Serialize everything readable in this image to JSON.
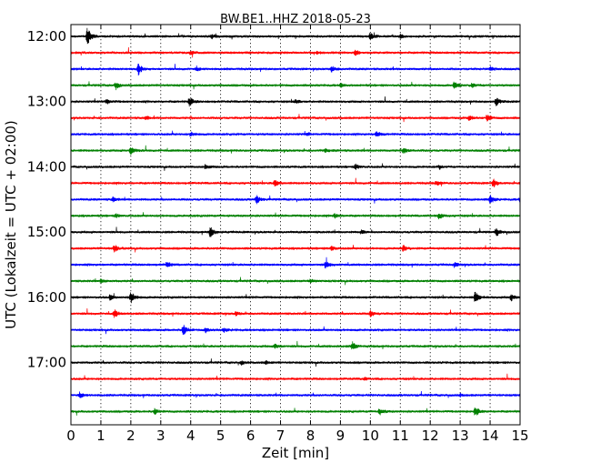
{
  "chart_data": {
    "type": "line",
    "title": "BW.BE1..HHZ 2018-05-23",
    "xlabel": "Zeit  [min]",
    "ylabel": "UTC (Lokalzeit = UTC + 02:00)",
    "xlim": [
      0,
      15
    ],
    "x_ticks": [
      "0",
      "1",
      "2",
      "3",
      "4",
      "5",
      "6",
      "7",
      "8",
      "9",
      "10",
      "11",
      "12",
      "13",
      "14",
      "15"
    ],
    "y_ticks": [
      {
        "label": "12:00",
        "row": 0
      },
      {
        "label": "13:00",
        "row": 4
      },
      {
        "label": "14:00",
        "row": 8
      },
      {
        "label": "15:00",
        "row": 12
      },
      {
        "label": "16:00",
        "row": 16
      },
      {
        "label": "17:00",
        "row": 20
      }
    ],
    "grid": "vertical dotted",
    "trace_colors": [
      "#000000",
      "#ff0000",
      "#0000ff",
      "#008000"
    ],
    "traces": [
      {
        "start": "12:00",
        "color": "#000000",
        "events": [
          [
            0.55,
            1.0
          ],
          [
            10.0,
            0.45
          ],
          [
            4.7,
            0.25
          ],
          [
            11.0,
            0.2
          ]
        ]
      },
      {
        "start": "12:15",
        "color": "#ff0000",
        "events": [
          [
            9.5,
            0.3
          ],
          [
            4.0,
            0.2
          ],
          [
            8.2,
            0.2
          ]
        ]
      },
      {
        "start": "12:30",
        "color": "#0000ff",
        "events": [
          [
            2.25,
            0.7
          ],
          [
            8.7,
            0.3
          ],
          [
            14.0,
            0.25
          ],
          [
            4.2,
            0.2
          ]
        ]
      },
      {
        "start": "12:45",
        "color": "#008000",
        "events": [
          [
            1.5,
            0.35
          ],
          [
            12.8,
            0.4
          ],
          [
            13.4,
            0.3
          ],
          [
            9.0,
            0.2
          ]
        ]
      },
      {
        "start": "13:00",
        "color": "#000000",
        "events": [
          [
            3.95,
            0.5
          ],
          [
            14.2,
            0.45
          ],
          [
            1.2,
            0.25
          ],
          [
            7.5,
            0.2
          ]
        ]
      },
      {
        "start": "13:15",
        "color": "#ff0000",
        "events": [
          [
            13.9,
            0.4
          ],
          [
            13.3,
            0.3
          ],
          [
            2.5,
            0.2
          ]
        ]
      },
      {
        "start": "13:30",
        "color": "#0000ff",
        "events": [
          [
            10.2,
            0.3
          ],
          [
            4.0,
            0.2
          ],
          [
            7.9,
            0.2
          ]
        ]
      },
      {
        "start": "13:45",
        "color": "#008000",
        "events": [
          [
            2.0,
            0.45
          ],
          [
            11.1,
            0.35
          ],
          [
            8.5,
            0.2
          ]
        ]
      },
      {
        "start": "14:00",
        "color": "#000000",
        "events": [
          [
            4.5,
            0.3
          ],
          [
            9.5,
            0.3
          ],
          [
            12.3,
            0.2
          ]
        ]
      },
      {
        "start": "14:15",
        "color": "#ff0000",
        "events": [
          [
            6.8,
            0.4
          ],
          [
            14.1,
            0.45
          ],
          [
            12.2,
            0.25
          ]
        ]
      },
      {
        "start": "14:30",
        "color": "#0000ff",
        "events": [
          [
            6.2,
            0.45
          ],
          [
            14.0,
            0.5
          ],
          [
            1.4,
            0.25
          ],
          [
            15.0,
            0.3
          ]
        ]
      },
      {
        "start": "14:45",
        "color": "#008000",
        "events": [
          [
            12.3,
            0.4
          ],
          [
            8.8,
            0.25
          ],
          [
            1.5,
            0.2
          ]
        ]
      },
      {
        "start": "15:00",
        "color": "#000000",
        "events": [
          [
            4.65,
            0.6
          ],
          [
            14.2,
            0.45
          ],
          [
            9.7,
            0.2
          ]
        ]
      },
      {
        "start": "15:15",
        "color": "#ff0000",
        "events": [
          [
            1.45,
            0.45
          ],
          [
            11.1,
            0.35
          ],
          [
            8.7,
            0.25
          ]
        ]
      },
      {
        "start": "15:30",
        "color": "#0000ff",
        "events": [
          [
            8.5,
            0.4
          ],
          [
            3.2,
            0.3
          ],
          [
            12.8,
            0.25
          ]
        ]
      },
      {
        "start": "15:45",
        "color": "#008000",
        "events": [
          [
            1.0,
            0.2
          ],
          [
            8.0,
            0.2
          ]
        ]
      },
      {
        "start": "16:00",
        "color": "#000000",
        "events": [
          [
            2.0,
            0.6
          ],
          [
            13.5,
            0.6
          ],
          [
            14.7,
            0.35
          ],
          [
            1.3,
            0.3
          ]
        ]
      },
      {
        "start": "16:15",
        "color": "#ff0000",
        "events": [
          [
            1.45,
            0.5
          ],
          [
            10.0,
            0.35
          ],
          [
            5.5,
            0.2
          ]
        ]
      },
      {
        "start": "16:30",
        "color": "#0000ff",
        "events": [
          [
            3.75,
            0.6
          ],
          [
            4.5,
            0.3
          ],
          [
            5.1,
            0.25
          ]
        ]
      },
      {
        "start": "16:45",
        "color": "#008000",
        "events": [
          [
            9.4,
            0.5
          ],
          [
            6.8,
            0.25
          ]
        ]
      },
      {
        "start": "17:00",
        "color": "#000000",
        "events": [
          [
            5.7,
            0.2
          ],
          [
            6.5,
            0.2
          ]
        ]
      },
      {
        "start": "17:15",
        "color": "#ff0000",
        "events": [
          [
            9.8,
            0.15
          ]
        ]
      },
      {
        "start": "17:30",
        "color": "#0000ff",
        "events": [
          [
            0.3,
            0.3
          ],
          [
            13.0,
            0.15
          ]
        ]
      },
      {
        "start": "17:45",
        "color": "#008000",
        "events": [
          [
            13.5,
            0.6
          ],
          [
            10.3,
            0.4
          ],
          [
            2.8,
            0.3
          ]
        ]
      }
    ]
  }
}
